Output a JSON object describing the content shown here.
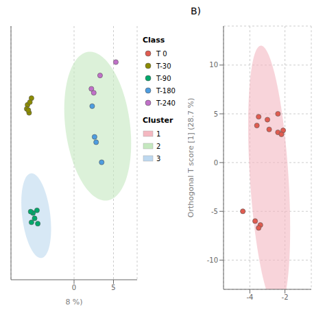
{
  "chart_data": [
    {
      "type": "scatter",
      "xlabel": "8 %)",
      "xlim": [
        -8,
        8
      ],
      "ylim": [
        -11,
        8
      ],
      "xticks": [
        0,
        5
      ],
      "yticks": [],
      "grid": true,
      "tick_labels": "x",
      "annotations": [
        "Class",
        "Cluster"
      ],
      "series": [
        {
          "name": "2",
          "type": "ellipse",
          "color": "#c5e8bf",
          "cx": 3.0,
          "cy": 0.5,
          "width": 8.0,
          "height": 11.5,
          "angle": 20
        },
        {
          "name": "3",
          "type": "ellipse",
          "color": "#bdd8ef",
          "cx": -4.8,
          "cy": -6.2,
          "width": 3.5,
          "height": 6.5,
          "angle": 15
        },
        {
          "name": "T-30",
          "type": "scatter",
          "marker": "circle",
          "color": "#8b8b00",
          "x": [
            -5.9,
            -5.4,
            -5.6,
            -6.0,
            -5.7,
            -5.8
          ],
          "values": [
            2.1,
            2.6,
            2.3,
            1.8,
            1.5,
            1.7
          ]
        },
        {
          "name": "T-90",
          "type": "scatter",
          "marker": "circle",
          "color": "#00a86b",
          "x": [
            -4.7,
            -5.2,
            -5.5,
            -4.6,
            -5.0,
            -5.4
          ],
          "values": [
            -5.8,
            -6.0,
            -5.9,
            -6.8,
            -6.4,
            -6.7
          ]
        },
        {
          "name": "T-180",
          "type": "scatter",
          "marker": "circle",
          "color": "#4d9de0",
          "x": [
            3.5,
            2.6,
            2.8,
            2.3
          ],
          "values": [
            -2.2,
            -0.3,
            -0.7,
            2.0
          ]
        },
        {
          "name": "T-240",
          "type": "scatter",
          "marker": "circle",
          "color": "#c070c8",
          "x": [
            3.3,
            2.2,
            2.5,
            5.3
          ],
          "values": [
            4.3,
            3.3,
            3.0,
            5.3
          ]
        }
      ]
    },
    {
      "type": "scatter",
      "title": "B)",
      "ylabel": "Orthogonal T score [1] (28.7 %)",
      "xlim": [
        -5.5,
        -0.5
      ],
      "ylim": [
        -13,
        14
      ],
      "xticks": [
        -4,
        -2
      ],
      "yticks": [
        -10,
        -5,
        0,
        5,
        10
      ],
      "grid": true,
      "series": [
        {
          "name": "1",
          "type": "ellipse",
          "color": "#f4b8c1",
          "cx": -2.9,
          "cy": -1.5,
          "width": 2.2,
          "height": 27,
          "angle": 2
        },
        {
          "name": "T 0",
          "type": "scatter",
          "marker": "circle",
          "color": "#e05c50",
          "x": [
            -3.5,
            -3.0,
            -3.6,
            -2.4,
            -2.1,
            -2.4,
            -2.2,
            -2.9,
            -4.4,
            -3.7,
            -3.4,
            -3.5
          ],
          "values": [
            4.7,
            4.4,
            3.8,
            5.0,
            3.3,
            3.1,
            2.9,
            3.4,
            -5.0,
            -6.0,
            -6.4,
            -6.7
          ]
        }
      ]
    }
  ]
}
